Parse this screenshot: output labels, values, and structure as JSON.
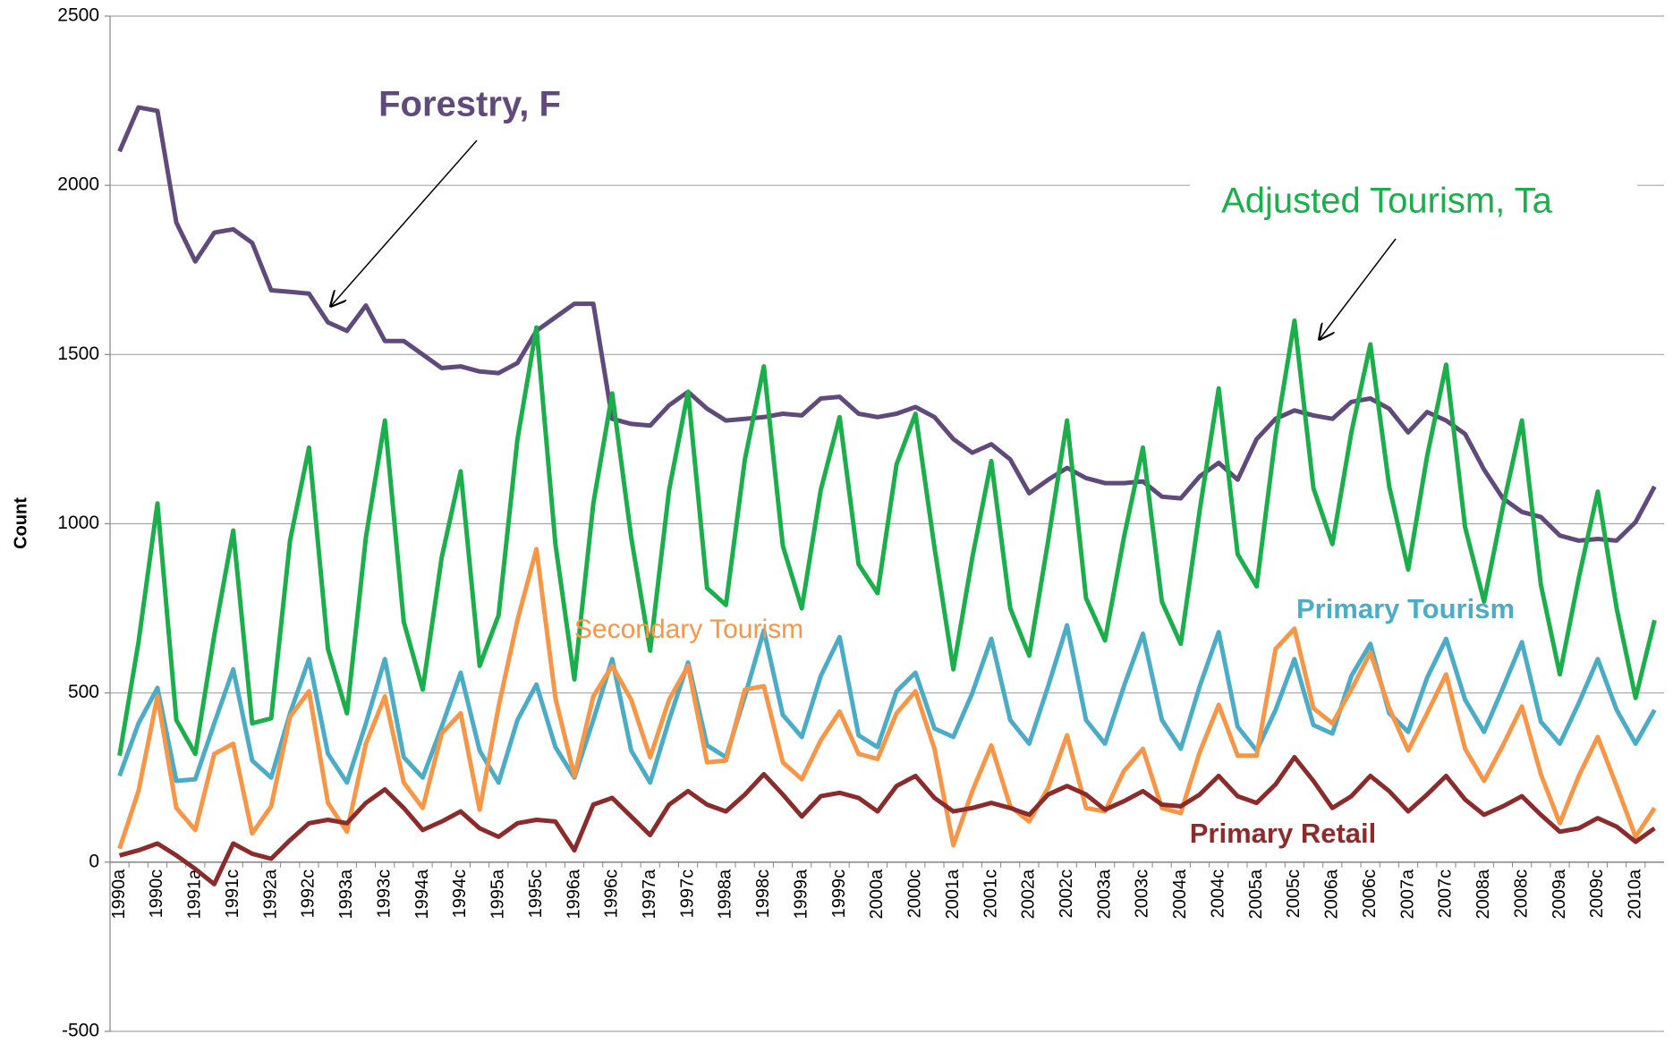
{
  "chart_data": {
    "type": "line",
    "y_label": "Count",
    "categories": [
      "1990a",
      null,
      "1990c",
      null,
      "1991a",
      null,
      "1991c",
      null,
      "1992a",
      null,
      "1992c",
      null,
      "1993a",
      null,
      "1993c",
      null,
      "1994a",
      null,
      "1994c",
      null,
      "1995a",
      null,
      "1995c",
      null,
      "1996a",
      null,
      "1996c",
      null,
      "1997a",
      null,
      "1997c",
      null,
      "1998a",
      null,
      "1998c",
      null,
      "1999a",
      null,
      "1999c",
      null,
      "2000a",
      null,
      "2000c",
      null,
      "2001a",
      null,
      "2001c",
      null,
      "2002a",
      null,
      "2002c",
      null,
      "2003a",
      null,
      "2003c",
      null,
      "2004a",
      null,
      "2004c",
      null,
      "2005a",
      null,
      "2005c",
      null,
      "2006a",
      null,
      "2006c",
      null,
      "2007a",
      null,
      "2007c",
      null,
      "2008a",
      null,
      "2008c",
      null,
      "2009a",
      null,
      "2009c",
      null,
      "2010a",
      null
    ],
    "ylim": [
      -500,
      2500
    ],
    "yticks": [
      -500,
      0,
      500,
      1000,
      1500,
      2000,
      2500
    ],
    "grid": true,
    "series": [
      {
        "name": "Forestry, F",
        "color": "#604a7b",
        "values": [
          2100,
          2230,
          2220,
          1890,
          1775,
          1860,
          1870,
          1830,
          1690,
          1685,
          1680,
          1595,
          1570,
          1645,
          1540,
          1540,
          1500,
          1460,
          1465,
          1450,
          1445,
          1475,
          1570,
          1610,
          1650,
          1650,
          1310,
          1295,
          1290,
          1350,
          1390,
          1340,
          1305,
          1310,
          1315,
          1325,
          1320,
          1370,
          1375,
          1325,
          1315,
          1325,
          1345,
          1315,
          1250,
          1210,
          1235,
          1190,
          1090,
          1130,
          1165,
          1135,
          1120,
          1120,
          1125,
          1080,
          1075,
          1140,
          1180,
          1130,
          1250,
          1310,
          1335,
          1320,
          1310,
          1360,
          1370,
          1340,
          1270,
          1330,
          1305,
          1265,
          1160,
          1075,
          1035,
          1020,
          965,
          950,
          955,
          950,
          1005,
          1110
        ]
      },
      {
        "name": "Adjusted Tourism, Ta",
        "color": "#1aaf4b",
        "values": [
          315,
          650,
          1060,
          420,
          320,
          670,
          980,
          410,
          425,
          950,
          1225,
          630,
          440,
          960,
          1305,
          710,
          510,
          900,
          1155,
          580,
          730,
          1250,
          1580,
          940,
          540,
          1060,
          1385,
          960,
          625,
          1100,
          1390,
          810,
          760,
          1190,
          1465,
          935,
          750,
          1100,
          1315,
          880,
          795,
          1175,
          1325,
          930,
          570,
          900,
          1185,
          750,
          610,
          950,
          1305,
          780,
          655,
          960,
          1225,
          770,
          645,
          1040,
          1400,
          910,
          815,
          1260,
          1600,
          1105,
          940,
          1270,
          1530,
          1110,
          865,
          1200,
          1470,
          990,
          770,
          1050,
          1305,
          820,
          555,
          840,
          1095,
          750,
          485,
          715
        ]
      },
      {
        "name": "Primary Tourism",
        "color": "#4bacc6",
        "values": [
          255,
          410,
          515,
          240,
          245,
          410,
          570,
          300,
          250,
          440,
          600,
          320,
          235,
          410,
          600,
          310,
          250,
          400,
          560,
          330,
          235,
          420,
          525,
          340,
          250,
          420,
          600,
          330,
          235,
          420,
          590,
          345,
          310,
          490,
          685,
          435,
          370,
          550,
          665,
          375,
          340,
          505,
          560,
          395,
          370,
          500,
          660,
          420,
          350,
          520,
          700,
          420,
          350,
          520,
          675,
          420,
          335,
          520,
          680,
          400,
          330,
          450,
          600,
          405,
          380,
          550,
          645,
          440,
          385,
          545,
          660,
          480,
          385,
          515,
          650,
          415,
          350,
          470,
          600,
          450,
          350,
          450
        ]
      },
      {
        "name": "Secondary Tourism",
        "color": "#f79646",
        "values": [
          40,
          210,
          490,
          160,
          95,
          320,
          350,
          85,
          165,
          430,
          505,
          175,
          90,
          350,
          490,
          235,
          160,
          380,
          440,
          155,
          460,
          715,
          925,
          485,
          255,
          490,
          580,
          480,
          310,
          480,
          580,
          295,
          300,
          510,
          520,
          295,
          245,
          360,
          445,
          320,
          305,
          440,
          505,
          335,
          50,
          210,
          345,
          165,
          120,
          220,
          375,
          160,
          150,
          270,
          335,
          160,
          145,
          325,
          465,
          315,
          315,
          630,
          690,
          455,
          410,
          510,
          620,
          455,
          330,
          440,
          555,
          335,
          240,
          345,
          460,
          260,
          115,
          255,
          370,
          225,
          75,
          160
        ]
      },
      {
        "name": "Primary Retail",
        "color": "#8b2b2b",
        "values": [
          20,
          35,
          55,
          20,
          -20,
          -65,
          55,
          25,
          10,
          65,
          115,
          125,
          115,
          175,
          215,
          160,
          95,
          120,
          150,
          100,
          75,
          115,
          125,
          120,
          35,
          170,
          190,
          135,
          80,
          170,
          210,
          170,
          150,
          200,
          260,
          200,
          135,
          195,
          205,
          190,
          150,
          225,
          255,
          190,
          150,
          160,
          175,
          160,
          140,
          200,
          225,
          200,
          155,
          180,
          210,
          170,
          165,
          200,
          255,
          195,
          175,
          230,
          310,
          240,
          160,
          195,
          255,
          210,
          150,
          200,
          255,
          185,
          140,
          165,
          195,
          140,
          90,
          100,
          130,
          105,
          60,
          100
        ]
      }
    ]
  }
}
